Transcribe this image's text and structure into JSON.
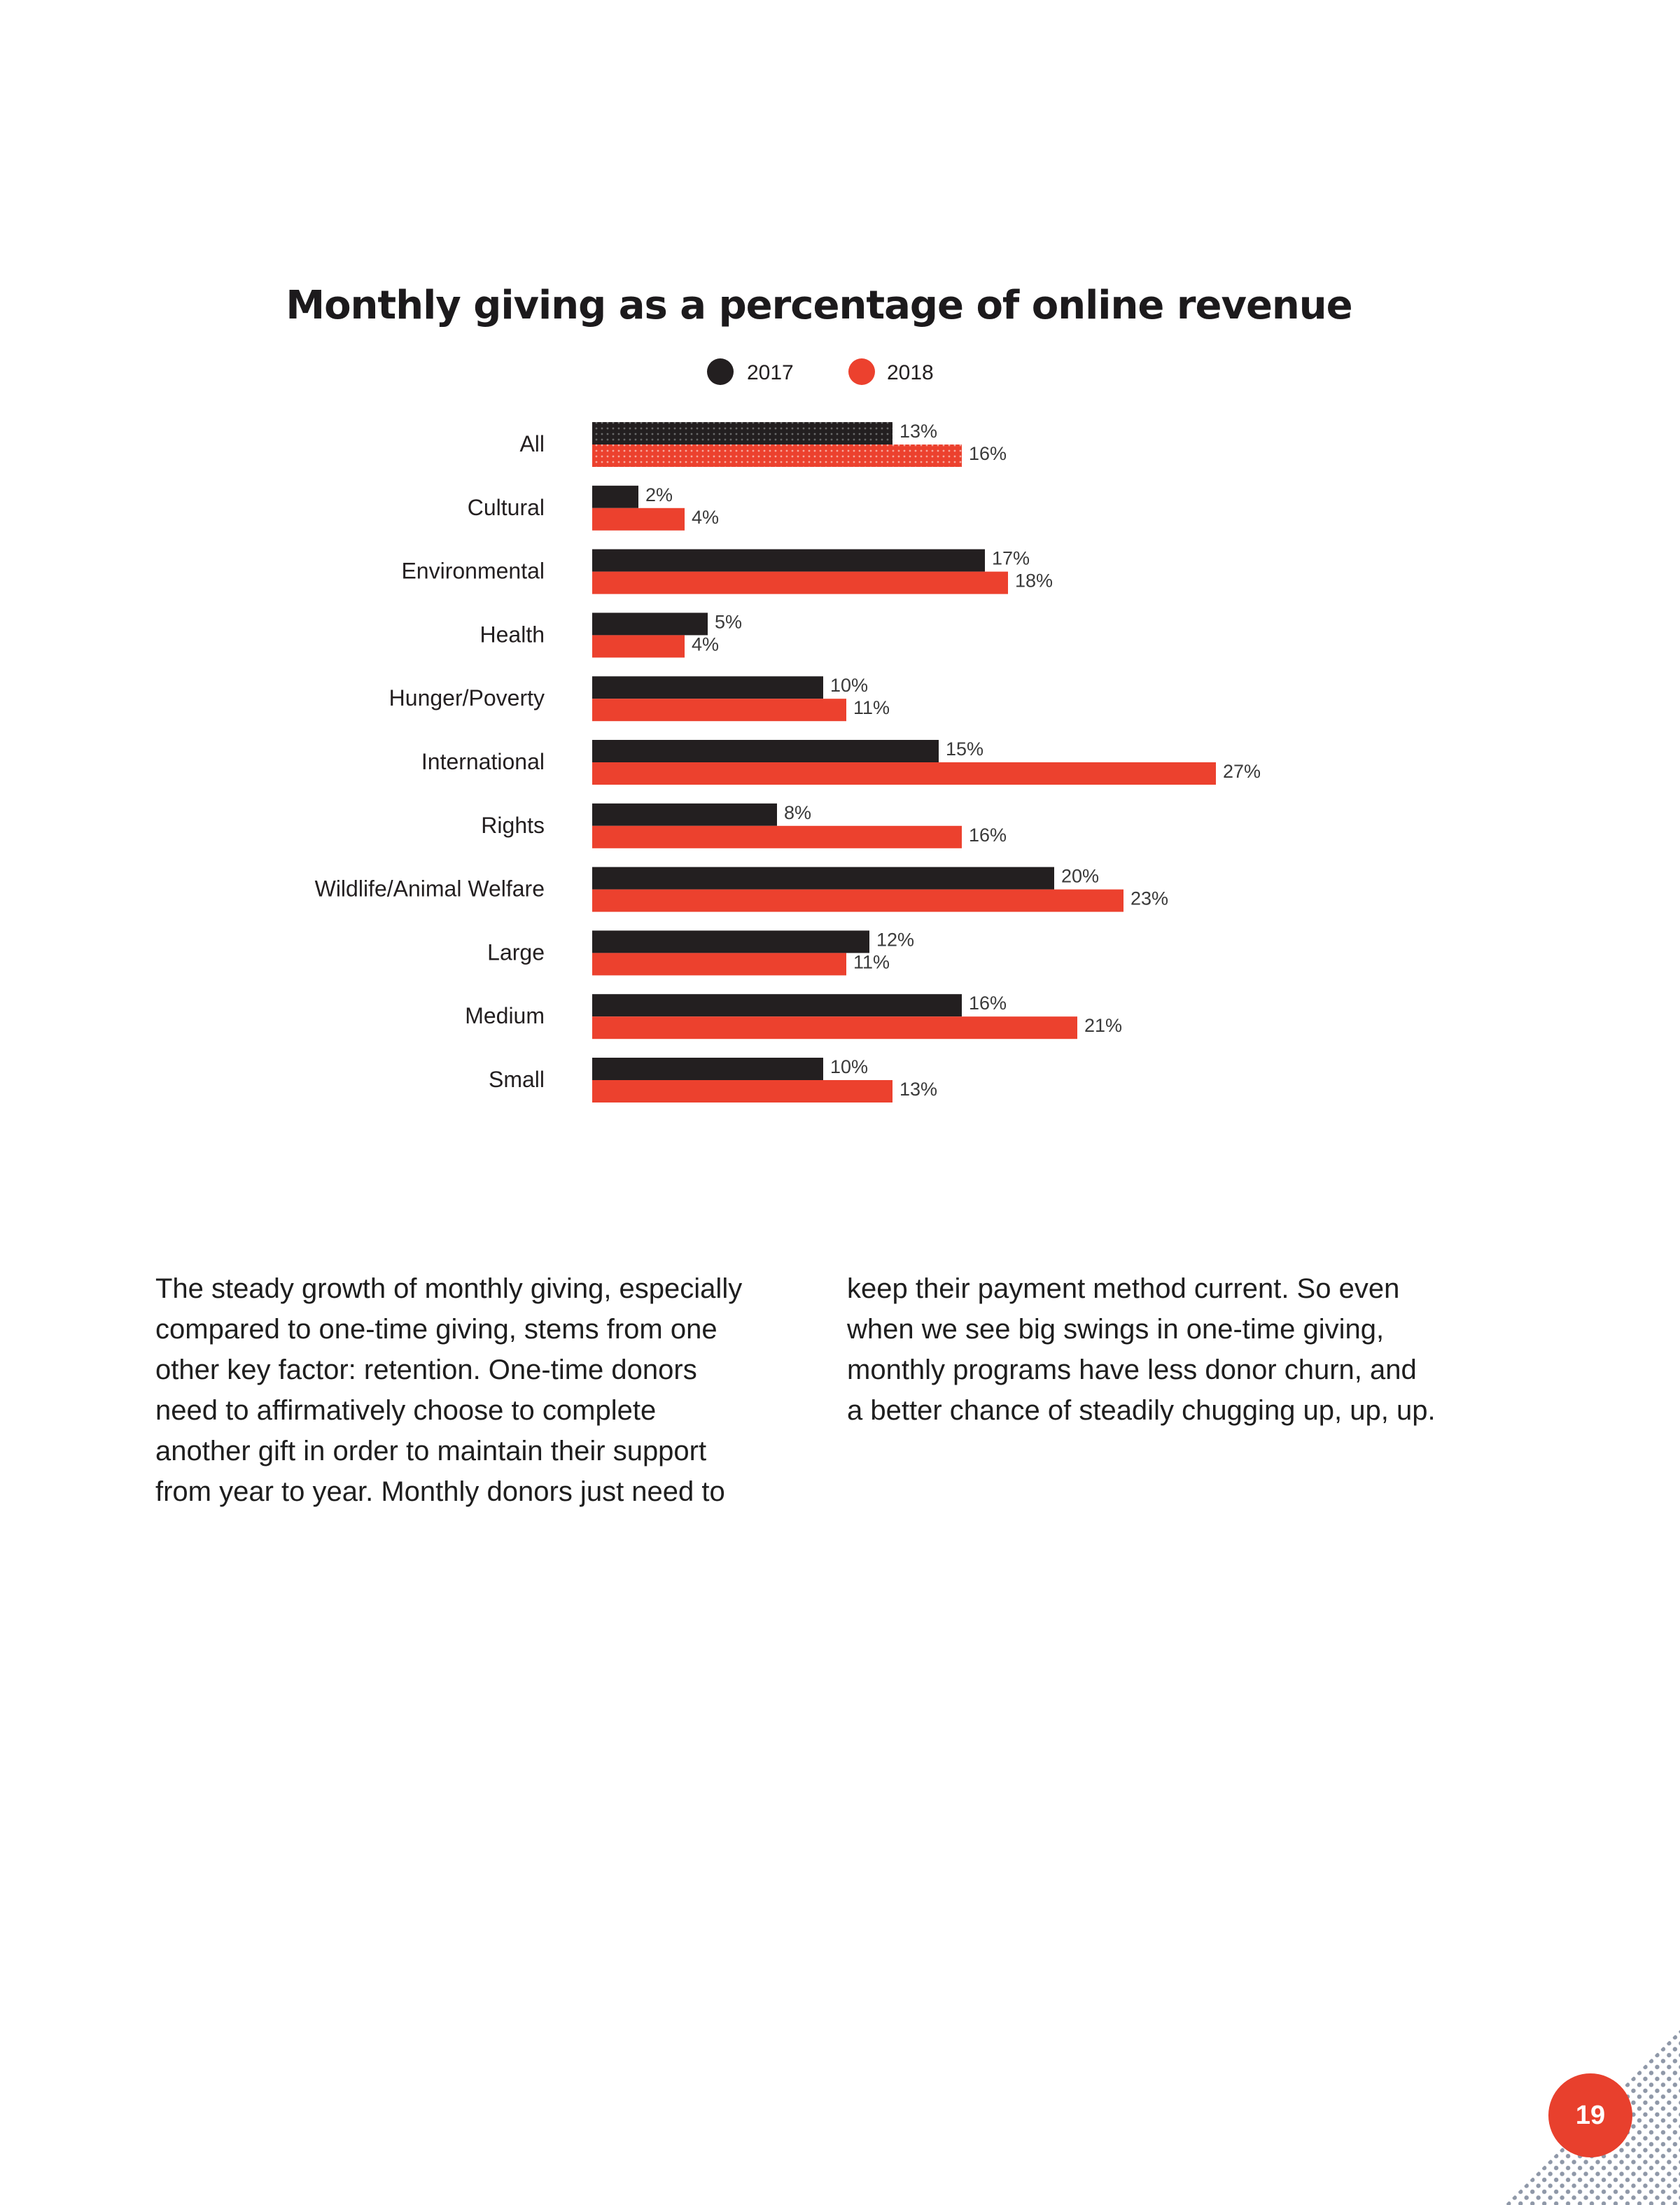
{
  "page": {
    "number": "19",
    "body_left": [
      "The steady growth of monthly giving, especially",
      "compared to one-time giving, stems from one",
      "other key factor: retention. One-time donors",
      "need to affirmatively choose to complete",
      "another gift in order to maintain their support",
      "from year to year. Monthly donors just need to"
    ],
    "body_right": [
      "keep their payment method current. So even",
      "when we see big swings in one-time giving,",
      "monthly programs have less donor churn, and",
      "a better chance of steadily chugging up, up, up."
    ]
  },
  "colors": {
    "series_2017": "#231f20",
    "series_2018": "#ec412e",
    "accent": "#e8402d"
  },
  "chart_data": {
    "type": "bar",
    "orientation": "horizontal",
    "title": "Monthly giving as a percentage of online revenue",
    "legend_position": "top-center",
    "categories": [
      "All",
      "Cultural",
      "Environmental",
      "Health",
      "Hunger/Poverty",
      "International",
      "Rights",
      "Wildlife/Animal Welfare",
      "Large",
      "Medium",
      "Small"
    ],
    "series": [
      {
        "name": "2017",
        "values": [
          13,
          2,
          17,
          5,
          10,
          15,
          8,
          20,
          12,
          16,
          10
        ],
        "labels": [
          "13%",
          "2%",
          "17%",
          "5%",
          "10%",
          "15%",
          "8%",
          "20%",
          "12%",
          "16%",
          "10%"
        ]
      },
      {
        "name": "2018",
        "values": [
          16,
          4,
          18,
          4,
          11,
          27,
          16,
          23,
          11,
          21,
          13
        ],
        "labels": [
          "16%",
          "4%",
          "18%",
          "4%",
          "11%",
          "27%",
          "16%",
          "23%",
          "11%",
          "21%",
          "13%"
        ]
      }
    ],
    "xlim": [
      0,
      30
    ],
    "grid": false
  }
}
